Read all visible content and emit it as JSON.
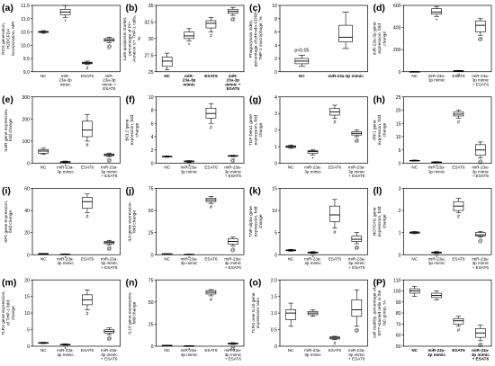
{
  "chart_data": [
    {
      "id": "a",
      "label": "(a)",
      "type": "box",
      "ylabel": [
        "ROS generation,",
        "H2DCFDA",
        "incorporation, MFI"
      ],
      "ylim": [
        9.0,
        11.5
      ],
      "yticks": [
        "9.0",
        "9.5",
        "10.0",
        "10.5",
        "11.0",
        "11.5"
      ],
      "categories": [
        [
          "NC"
        ],
        [
          "miR-",
          "23a-3p",
          "mimic"
        ],
        [
          "ESAT6"
        ],
        [
          "miR-",
          "23a-3p",
          "mimic +",
          "ESAT6"
        ]
      ],
      "boxes": [
        {
          "min": 10.45,
          "q1": 10.48,
          "median": 10.5,
          "q3": 10.52,
          "max": 10.55
        },
        {
          "min": 11.05,
          "q1": 11.15,
          "median": 11.25,
          "q3": 11.35,
          "max": 11.5
        },
        {
          "min": 9.28,
          "q1": 9.3,
          "median": 9.33,
          "q3": 9.36,
          "max": 9.4
        },
        {
          "min": 10.1,
          "q1": 10.15,
          "median": 10.2,
          "q3": 10.25,
          "max": 10.3
        }
      ],
      "marks": [
        "",
        "*",
        "#",
        "@"
      ]
    },
    {
      "id": "b",
      "label": "(b)",
      "type": "box",
      "ylabel": [
        "Late apoptosis marker,",
        "percentage of PI+",
        "Annexin V+ THP-1 cells,",
        "%"
      ],
      "ylim": [
        25,
        35
      ],
      "yticks": [
        "25",
        "27.5",
        "30",
        "32.5",
        "35"
      ],
      "categories": [
        [
          "NC"
        ],
        [
          "miR-",
          "23a-3p",
          "mimic"
        ],
        [
          "ESAT6"
        ],
        [
          "miR-",
          "23a-3p",
          "mimic +",
          "ESAT6"
        ]
      ],
      "boxes": [
        {
          "min": 25.3,
          "q1": 25.8,
          "median": 26.6,
          "q3": 27.2,
          "max": 27.8
        },
        {
          "min": 29.6,
          "q1": 30.0,
          "median": 30.4,
          "q3": 31.0,
          "max": 31.5
        },
        {
          "min": 31.0,
          "q1": 31.6,
          "median": 32.3,
          "q3": 32.7,
          "max": 33.2
        },
        {
          "min": 33.5,
          "q1": 33.8,
          "median": 34.1,
          "q3": 34.4,
          "max": 34.7
        }
      ],
      "marks": [
        "",
        "*",
        "#",
        "@"
      ]
    },
    {
      "id": "c",
      "label": "(c)",
      "type": "box",
      "ylabel": [
        "Phagocytosis index,",
        "percentage of pHrodo-CD68+",
        "THP-1 macrophage, %"
      ],
      "ylim": [
        0,
        10
      ],
      "yticks": [
        "0",
        "2",
        "4",
        "6",
        "8",
        "10"
      ],
      "categories": [
        [
          "NC"
        ],
        [
          "miR-23a-3p mimic"
        ]
      ],
      "boxes": [
        {
          "min": 0.8,
          "q1": 1.2,
          "median": 1.6,
          "q3": 2.0,
          "max": 2.5
        },
        {
          "min": 3.5,
          "q1": 4.5,
          "median": 5.2,
          "q3": 7.0,
          "max": 9.0
        }
      ],
      "marks": [
        "",
        ""
      ],
      "annotation": "p<0.05"
    },
    {
      "id": "d",
      "label": "(d)",
      "type": "box",
      "ylabel": [
        "miR-23a-3p gene",
        "expression, fold",
        "change"
      ],
      "ylim": [
        0,
        600
      ],
      "yticks": [
        "0",
        "200",
        "400",
        "600"
      ],
      "categories": [
        [
          "NC"
        ],
        [
          "miR-23a-",
          "3p mimic"
        ],
        [
          "ESAT6"
        ],
        [
          "miR-23a-",
          "3p mimic",
          "+ ESAT6"
        ]
      ],
      "boxes": [
        {
          "min": 0.5,
          "q1": 0.8,
          "median": 1,
          "q3": 1.2,
          "max": 1.5
        },
        {
          "min": 500,
          "q1": 520,
          "median": 540,
          "q3": 570,
          "max": 590
        },
        {
          "min": 4,
          "q1": 6,
          "median": 8,
          "q3": 10,
          "max": 12
        },
        {
          "min": 330,
          "q1": 360,
          "median": 420,
          "q3": 460,
          "max": 480
        }
      ],
      "marks": [
        "",
        "*",
        "#",
        "@"
      ]
    },
    {
      "id": "e",
      "label": "(e)",
      "type": "box",
      "ylabel": [
        "IL6R gene expression,",
        "fold change"
      ],
      "ylim": [
        0,
        300
      ],
      "yticks": [
        "0",
        "100",
        "200",
        "300"
      ],
      "categories": [
        [
          "NC"
        ],
        [
          "miR-23a-",
          "3p mimic"
        ],
        [
          "ESAT6"
        ],
        [
          "miR-23a-",
          "3p mimic",
          "+ ESAT6"
        ]
      ],
      "boxes": [
        {
          "min": 40,
          "q1": 45,
          "median": 55,
          "q3": 62,
          "max": 68
        },
        {
          "min": 2,
          "q1": 4,
          "median": 6,
          "q3": 8,
          "max": 10
        },
        {
          "min": 100,
          "q1": 120,
          "median": 150,
          "q3": 190,
          "max": 220
        },
        {
          "min": 30,
          "q1": 34,
          "median": 38,
          "q3": 42,
          "max": 46
        }
      ],
      "marks": [
        "",
        "*",
        "#",
        "@"
      ]
    },
    {
      "id": "f",
      "label": "(f)",
      "type": "box",
      "ylabel": [
        "BCL2 gene",
        "expression, fold",
        "change"
      ],
      "ylim": [
        0,
        10
      ],
      "yticks": [
        "0",
        "2",
        "4",
        "6",
        "8",
        "10"
      ],
      "categories": [
        [
          "NC"
        ],
        [
          "miR-23a-",
          "3p mimic"
        ],
        [
          "ESAT6"
        ],
        [
          "miR-23a-",
          "3p mimic",
          "+ ESAT6"
        ]
      ],
      "boxes": [
        {
          "min": 0.9,
          "q1": 0.95,
          "median": 1.0,
          "q3": 1.05,
          "max": 1.1
        },
        {
          "min": 0.1,
          "q1": 0.2,
          "median": 0.3,
          "q3": 0.35,
          "max": 0.4
        },
        {
          "min": 6.0,
          "q1": 6.8,
          "median": 7.5,
          "q3": 8.3,
          "max": 9.0
        },
        {
          "min": 1.0,
          "q1": 1.05,
          "median": 1.1,
          "q3": 1.15,
          "max": 1.2
        }
      ],
      "marks": [
        "",
        "*",
        "#",
        "@"
      ]
    },
    {
      "id": "g",
      "label": "(g)",
      "type": "box",
      "ylabel": [
        "TGF-beta1 gene",
        "expression, fold",
        "change"
      ],
      "ylim": [
        0,
        4
      ],
      "yticks": [
        "0",
        "1",
        "2",
        "3",
        "4"
      ],
      "categories": [
        [
          "NC"
        ],
        [
          "miR-23a-",
          "3p mimic"
        ],
        [
          "ESAT6"
        ],
        [
          "miR-23a-",
          "3p mimic",
          "+ ESAT6"
        ]
      ],
      "boxes": [
        {
          "min": 0.9,
          "q1": 0.95,
          "median": 1.0,
          "q3": 1.05,
          "max": 1.1
        },
        {
          "min": 0.5,
          "q1": 0.6,
          "median": 0.7,
          "q3": 0.75,
          "max": 0.8
        },
        {
          "min": 2.7,
          "q1": 2.9,
          "median": 3.1,
          "q3": 3.3,
          "max": 3.5
        },
        {
          "min": 1.6,
          "q1": 1.7,
          "median": 1.8,
          "q3": 1.9,
          "max": 2.0
        }
      ],
      "marks": [
        "",
        "*",
        "#",
        "@"
      ]
    },
    {
      "id": "h",
      "label": "(h)",
      "type": "box",
      "ylabel": [
        "IRF1 gene",
        "expression, fold",
        "change"
      ],
      "ylim": [
        0,
        25
      ],
      "yticks": [
        "0",
        "5",
        "10",
        "15",
        "20",
        "25"
      ],
      "categories": [
        [
          "NC"
        ],
        [
          "miR-23a-",
          "3p mimic"
        ],
        [
          "ESAT6"
        ],
        [
          "miR-23a-",
          "3p mimic",
          "+ ESAT6"
        ]
      ],
      "boxes": [
        {
          "min": 0.8,
          "q1": 0.9,
          "median": 1.0,
          "q3": 1.1,
          "max": 1.2
        },
        {
          "min": 0.2,
          "q1": 0.3,
          "median": 0.4,
          "q3": 0.5,
          "max": 0.6
        },
        {
          "min": 17,
          "q1": 17.8,
          "median": 18.5,
          "q3": 19.3,
          "max": 20
        },
        {
          "min": 2,
          "q1": 3,
          "median": 5,
          "q3": 7,
          "max": 8
        }
      ],
      "marks": [
        "",
        "*",
        "#",
        "@"
      ]
    },
    {
      "id": "i",
      "label": "(i)",
      "type": "box",
      "ylabel": [
        "SP1 gene expression,",
        "fold change"
      ],
      "ylim": [
        0,
        60
      ],
      "yticks": [
        "0",
        "20",
        "40",
        "60"
      ],
      "categories": [
        [
          "NC"
        ],
        [
          "miR-23a-",
          "3p mimic"
        ],
        [
          "ESAT6"
        ],
        [
          "miR-23a-",
          "3p mimic",
          "+ ESAT6"
        ]
      ],
      "boxes": [
        {
          "min": 0.8,
          "q1": 0.9,
          "median": 1.0,
          "q3": 1.1,
          "max": 1.2
        },
        {
          "min": 0.2,
          "q1": 0.3,
          "median": 0.4,
          "q3": 0.5,
          "max": 0.6
        },
        {
          "min": 38,
          "q1": 42,
          "median": 48,
          "q3": 52,
          "max": 55
        },
        {
          "min": 9,
          "q1": 10,
          "median": 11,
          "q3": 12,
          "max": 13
        }
      ],
      "marks": [
        "",
        "*",
        "#",
        "@"
      ]
    },
    {
      "id": "j",
      "label": "(j)",
      "type": "box",
      "ylabel": [
        "IL6 gene expression,",
        "fold change"
      ],
      "ylim": [
        0,
        75
      ],
      "yticks": [
        "0",
        "25",
        "50",
        "75"
      ],
      "categories": [
        [
          "NC"
        ],
        [
          "miR-23a-",
          "3p mimic"
        ],
        [
          "ESAT6"
        ],
        [
          "miR-23a-",
          "3p mimic",
          "+ ESAT6"
        ]
      ],
      "boxes": [
        {
          "min": 0.8,
          "q1": 0.9,
          "median": 1.0,
          "q3": 1.1,
          "max": 1.2
        },
        {
          "min": 0.2,
          "q1": 0.3,
          "median": 0.4,
          "q3": 0.5,
          "max": 0.6
        },
        {
          "min": 58,
          "q1": 60,
          "median": 62,
          "q3": 64,
          "max": 66
        },
        {
          "min": 10,
          "q1": 12,
          "median": 15,
          "q3": 18,
          "max": 20
        }
      ],
      "marks": [
        "",
        "*",
        "#",
        "@"
      ]
    },
    {
      "id": "k",
      "label": "(k)",
      "type": "box",
      "ylabel": [
        "TNF-alpha gene",
        "expression, fold",
        "change"
      ],
      "ylim": [
        0,
        15
      ],
      "yticks": [
        "0",
        "5",
        "10",
        "15"
      ],
      "categories": [
        [
          "NC"
        ],
        [
          "miR-23a-",
          "3p mimic"
        ],
        [
          "ESAT6"
        ],
        [
          "miR-23a-",
          "3p mimic",
          "+ ESAT6"
        ]
      ],
      "boxes": [
        {
          "min": 0.8,
          "q1": 0.9,
          "median": 1.0,
          "q3": 1.1,
          "max": 1.2
        },
        {
          "min": 0.3,
          "q1": 0.4,
          "median": 0.5,
          "q3": 0.6,
          "max": 0.7
        },
        {
          "min": 6,
          "q1": 7.5,
          "median": 9,
          "q3": 11,
          "max": 12.5
        },
        {
          "min": 2.5,
          "q1": 3.0,
          "median": 3.5,
          "q3": 4.2,
          "max": 5
        }
      ],
      "marks": [
        "",
        "*",
        "#",
        "@"
      ]
    },
    {
      "id": "l",
      "label": "(l)",
      "type": "box",
      "ylabel": [
        "NOTCH1 gene",
        "expression, fold",
        "change"
      ],
      "ylim": [
        0,
        3
      ],
      "yticks": [
        "0",
        "1",
        "2",
        "3"
      ],
      "categories": [
        [
          "NC"
        ],
        [
          "miR-23a-",
          "3p mimic"
        ],
        [
          "ESAT6"
        ],
        [
          "miR-23a-",
          "3p mimic",
          "+ ESAT6"
        ]
      ],
      "boxes": [
        {
          "min": 0.95,
          "q1": 0.97,
          "median": 1.0,
          "q3": 1.03,
          "max": 1.05
        },
        {
          "min": 0.05,
          "q1": 0.08,
          "median": 0.1,
          "q3": 0.12,
          "max": 0.15
        },
        {
          "min": 1.9,
          "q1": 2.0,
          "median": 2.2,
          "q3": 2.4,
          "max": 2.55
        },
        {
          "min": 0.8,
          "q1": 0.85,
          "median": 0.9,
          "q3": 1.0,
          "max": 1.05
        }
      ],
      "marks": [
        "",
        "*",
        "#",
        "@"
      ]
    },
    {
      "id": "m",
      "label": "(m)",
      "type": "box",
      "ylabel": [
        "TLR4 gene expression,",
        "of THP-1 fold",
        "change"
      ],
      "ylim": [
        0,
        20
      ],
      "yticks": [
        "0",
        "5",
        "10",
        "15",
        "20"
      ],
      "categories": [
        [
          "NC"
        ],
        [
          "miR-23a-",
          "3p mimic"
        ],
        [
          "ESAT6"
        ],
        [
          "miR-23a-",
          "3p mimic",
          "+ ESAT6"
        ]
      ],
      "boxes": [
        {
          "min": 0.8,
          "q1": 0.9,
          "median": 1.0,
          "q3": 1.1,
          "max": 1.2
        },
        {
          "min": 0.3,
          "q1": 0.4,
          "median": 0.5,
          "q3": 0.6,
          "max": 0.7
        },
        {
          "min": 11,
          "q1": 12.5,
          "median": 14,
          "q3": 15.5,
          "max": 17
        },
        {
          "min": 3.5,
          "q1": 4.0,
          "median": 4.5,
          "q3": 5.0,
          "max": 5.5
        }
      ],
      "marks": [
        "",
        "*",
        "#",
        "@"
      ]
    },
    {
      "id": "n",
      "label": "(n)",
      "type": "box",
      "ylabel": [
        "IL10 gene expression,",
        "fold change"
      ],
      "ylim": [
        0,
        75
      ],
      "yticks": [
        "0",
        "25",
        "50",
        "75"
      ],
      "categories": [
        [
          "NC"
        ],
        [
          "miR-23a-",
          "3p mimic"
        ],
        [
          "ESAT6"
        ],
        [
          "miR-23a-",
          "3p mimic",
          "+ ESAT6"
        ]
      ],
      "boxes": [
        {
          "min": 0.8,
          "q1": 0.9,
          "median": 1.0,
          "q3": 1.1,
          "max": 1.2
        },
        {
          "min": 0.2,
          "q1": 0.3,
          "median": 0.4,
          "q3": 0.5,
          "max": 0.6
        },
        {
          "min": 57,
          "q1": 59,
          "median": 61,
          "q3": 63,
          "max": 64
        },
        {
          "min": 2,
          "q1": 2.5,
          "median": 3,
          "q3": 3.5,
          "max": 4
        }
      ],
      "marks": [
        "",
        "*",
        "#",
        "@"
      ]
    },
    {
      "id": "o",
      "label": "(o)",
      "type": "box",
      "ylabel": [
        "TLR4 over IL10 gene",
        "expression ratio"
      ],
      "ylim": [
        0,
        2
      ],
      "yticks": [
        "0",
        "0.5",
        "1.0",
        "1.5",
        "2.0"
      ],
      "categories": [
        [
          "NC"
        ],
        [
          "miR-23a-",
          "3p mimic"
        ],
        [
          "ESAT6"
        ],
        [
          "miR-23a-",
          "3p mimic",
          "+ ESAT6"
        ]
      ],
      "boxes": [
        {
          "min": 0.6,
          "q1": 0.8,
          "median": 1.0,
          "q3": 1.1,
          "max": 1.3
        },
        {
          "min": 0.9,
          "q1": 0.95,
          "median": 1.0,
          "q3": 1.05,
          "max": 1.1
        },
        {
          "min": 0.2,
          "q1": 0.22,
          "median": 0.25,
          "q3": 0.28,
          "max": 0.3
        },
        {
          "min": 0.6,
          "q1": 0.9,
          "median": 1.1,
          "q3": 1.4,
          "max": 1.7
        }
      ],
      "marks": [
        "",
        "",
        "#",
        "@"
      ]
    },
    {
      "id": "p",
      "label": "(P)",
      "type": "box",
      "ylabel": [
        "cell viability, percentage of",
        "MTT-stained cells in the",
        "NC group, %"
      ],
      "ylim": [
        50,
        110
      ],
      "yticks": [
        "50",
        "60",
        "70",
        "80",
        "90",
        "100",
        "110"
      ],
      "categories": [
        [
          "NC"
        ],
        [
          "miR-23a-",
          "3p mimic"
        ],
        [
          "ESAT6"
        ],
        [
          "miR-23a-",
          "3p mimic",
          "+ ESAT6"
        ]
      ],
      "boxes": [
        {
          "min": 95,
          "q1": 98,
          "median": 100,
          "q3": 102,
          "max": 104
        },
        {
          "min": 92,
          "q1": 94,
          "median": 96,
          "q3": 98,
          "max": 100
        },
        {
          "min": 68,
          "q1": 70,
          "median": 73,
          "q3": 75,
          "max": 77
        },
        {
          "min": 55,
          "q1": 58,
          "median": 62,
          "q3": 66,
          "max": 69
        }
      ],
      "marks": [
        "",
        "",
        "#",
        "@"
      ]
    }
  ]
}
